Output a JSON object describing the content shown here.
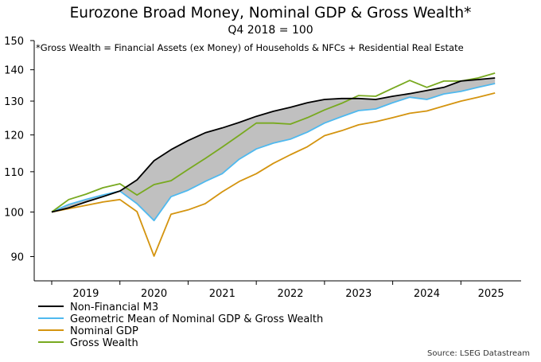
{
  "chart_data": {
    "type": "line",
    "title": "Eurozone Broad Money, Nominal GDP & Gross Wealth*",
    "subtitle": "Q4 2018 = 100",
    "annotation": "*Gross Wealth = Financial Assets (ex Money) of Households & NFCs + Residential Real Estate",
    "source": "Source: LSEG Datastream",
    "xlabel": "",
    "ylabel": "",
    "y_scale": "log",
    "ylim": [
      84,
      150
    ],
    "yticks": [
      90,
      100,
      110,
      120,
      130,
      140,
      150
    ],
    "x_categories": [
      "Q4 2018",
      "Q1 2019",
      "Q2 2019",
      "Q3 2019",
      "Q4 2019",
      "Q1 2020",
      "Q2 2020",
      "Q3 2020",
      "Q4 2020",
      "Q1 2021",
      "Q2 2021",
      "Q3 2021",
      "Q4 2021",
      "Q1 2022",
      "Q2 2022",
      "Q3 2022",
      "Q4 2022",
      "Q1 2023",
      "Q2 2023",
      "Q3 2023",
      "Q4 2023",
      "Q1 2024",
      "Q2 2024",
      "Q3 2024",
      "Q4 2024",
      "Q1 2025",
      "Q2 2025"
    ],
    "xticks": [
      "2019",
      "2020",
      "2021",
      "2022",
      "2023",
      "2024",
      "2025"
    ],
    "grid": false,
    "legend_position": "bottom-left",
    "shaded_band": {
      "between": [
        "Non-Financial M3",
        "Geometric Mean of Nominal GDP & Gross Wealth"
      ],
      "color": "#c0c0c0"
    },
    "series": [
      {
        "name": "Non-Financial M3",
        "color": "#000000",
        "values": [
          100.0,
          101.0,
          102.4,
          103.7,
          105.1,
          107.9,
          112.9,
          115.9,
          118.4,
          120.6,
          122.0,
          123.6,
          125.4,
          126.9,
          128.1,
          129.5,
          130.5,
          130.8,
          130.8,
          130.5,
          131.5,
          132.3,
          133.3,
          134.3,
          136.3,
          136.8,
          137.3
        ]
      },
      {
        "name": "Geometric Mean of Nominal GDP & Gross Wealth",
        "color": "#4fb9ef",
        "values": [
          100.0,
          101.8,
          103.0,
          104.1,
          105.1,
          102.0,
          98.0,
          103.7,
          105.3,
          107.5,
          109.5,
          113.3,
          116.1,
          117.7,
          118.8,
          120.8,
          123.4,
          125.3,
          127.1,
          127.6,
          129.5,
          131.2,
          130.5,
          132.2,
          133.0,
          134.3,
          135.5
        ]
      },
      {
        "name": "Nominal GDP",
        "color": "#d4940f",
        "values": [
          100.0,
          100.8,
          101.6,
          102.4,
          103.0,
          100.1,
          90.1,
          99.5,
          100.5,
          102.0,
          104.9,
          107.5,
          109.5,
          112.2,
          114.5,
          116.7,
          119.8,
          121.2,
          122.9,
          123.8,
          125.0,
          126.3,
          127.0,
          128.5,
          130.0,
          131.2,
          132.5
        ]
      },
      {
        "name": "Gross Wealth",
        "color": "#78a91f",
        "values": [
          100.0,
          103.0,
          104.3,
          105.9,
          106.9,
          104.1,
          106.7,
          107.7,
          110.6,
          113.5,
          116.6,
          119.9,
          123.4,
          123.4,
          123.1,
          125.0,
          127.3,
          129.3,
          131.7,
          131.5,
          134.0,
          136.5,
          134.3,
          136.3,
          136.3,
          137.3,
          138.9
        ]
      }
    ]
  }
}
